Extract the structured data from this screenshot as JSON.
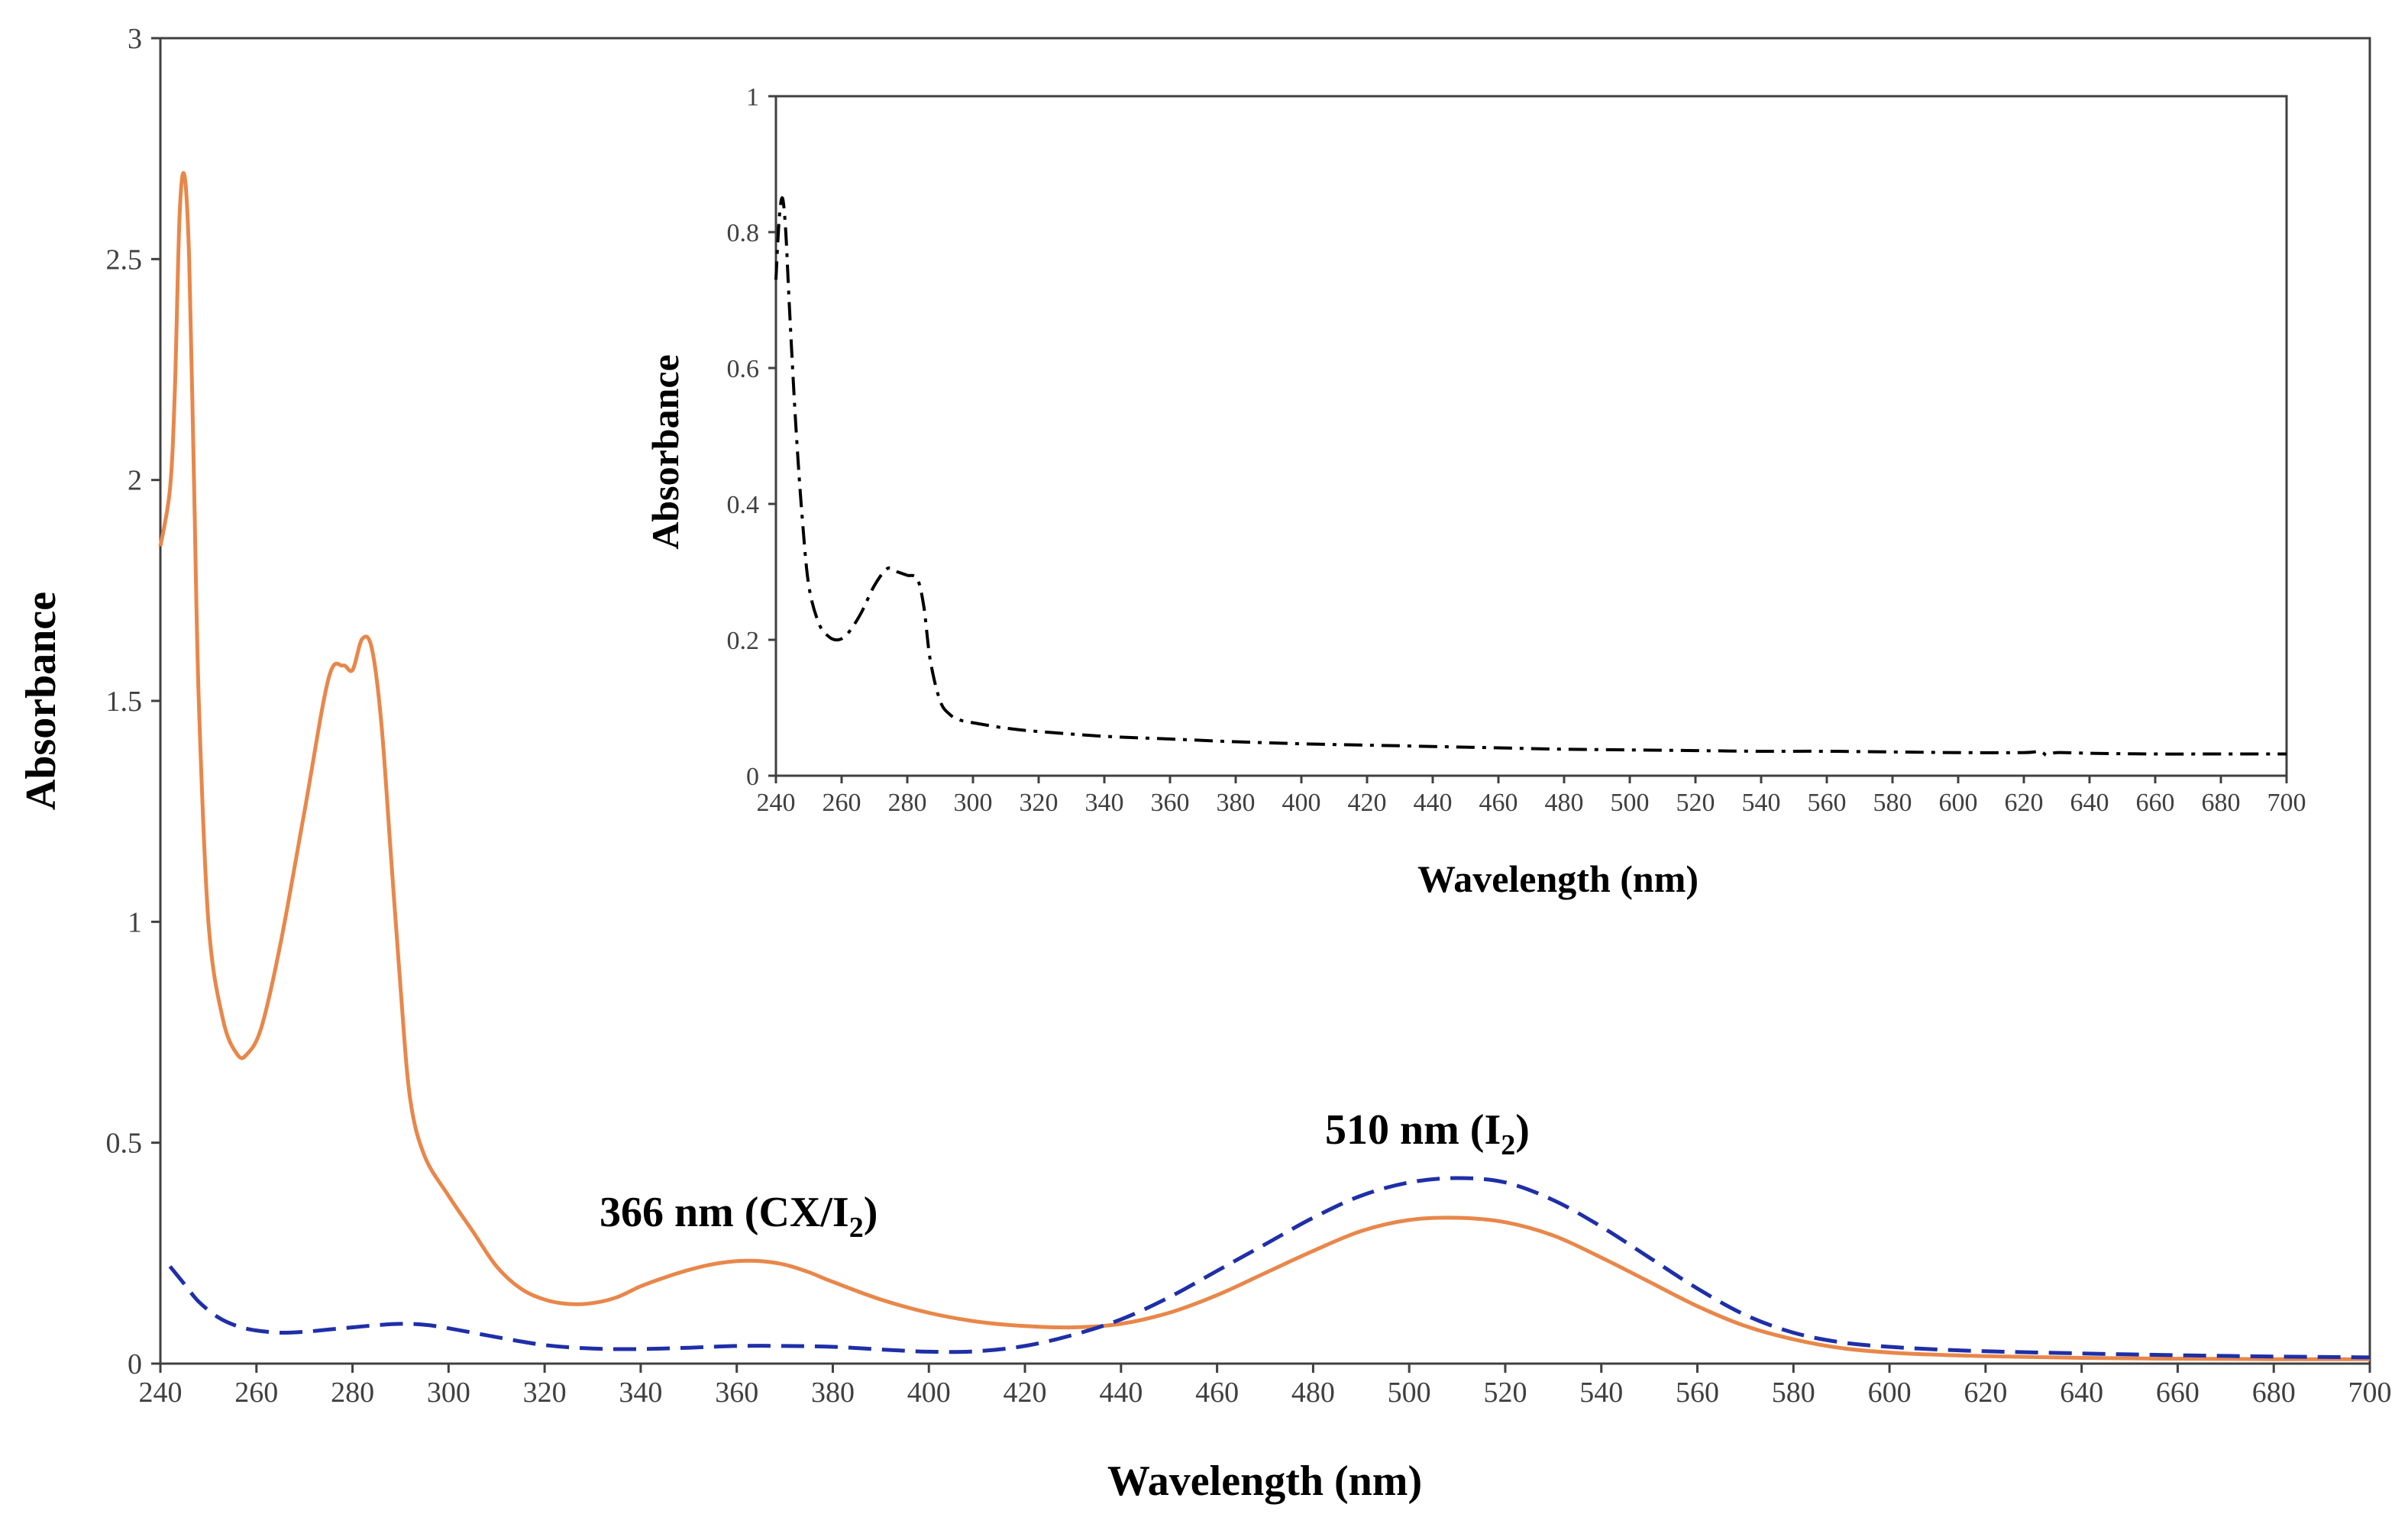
{
  "chart_data": [
    {
      "type": "line",
      "role": "main",
      "xlabel": "Wavelength (nm)",
      "ylabel": "Absorbance",
      "xlim": [
        240,
        700
      ],
      "ylim": [
        0,
        3
      ],
      "x_ticks": [
        240,
        260,
        280,
        300,
        320,
        340,
        360,
        380,
        400,
        420,
        440,
        460,
        480,
        500,
        520,
        540,
        560,
        580,
        600,
        620,
        640,
        660,
        680,
        700
      ],
      "y_ticks": [
        0,
        0.5,
        1,
        1.5,
        2,
        2.5,
        3
      ],
      "y_tick_labels": [
        "0",
        "0.5",
        "1",
        "1.5",
        "2",
        "2.5",
        "3"
      ],
      "grid": false,
      "series": [
        {
          "name": "CX/I2",
          "color": "#E8874A",
          "style": "solid",
          "x": [
            240,
            242,
            243,
            244,
            245,
            246,
            247,
            248,
            250,
            253,
            256,
            258,
            261,
            265,
            270,
            275,
            278,
            280,
            282,
            284,
            286,
            288,
            290,
            292,
            295,
            300,
            305,
            310,
            315,
            320,
            325,
            330,
            335,
            340,
            345,
            350,
            355,
            360,
            365,
            370,
            375,
            380,
            390,
            400,
            410,
            420,
            430,
            440,
            450,
            460,
            470,
            480,
            490,
            500,
            510,
            520,
            530,
            540,
            550,
            560,
            570,
            580,
            590,
            600,
            610,
            620,
            640,
            660,
            680,
            700
          ],
          "values": [
            1.85,
            1.98,
            2.2,
            2.6,
            2.69,
            2.5,
            2.0,
            1.5,
            1.0,
            0.78,
            0.7,
            0.7,
            0.76,
            0.95,
            1.25,
            1.55,
            1.58,
            1.57,
            1.64,
            1.62,
            1.45,
            1.15,
            0.85,
            0.6,
            0.47,
            0.38,
            0.3,
            0.22,
            0.17,
            0.145,
            0.135,
            0.137,
            0.15,
            0.175,
            0.195,
            0.212,
            0.225,
            0.232,
            0.232,
            0.224,
            0.207,
            0.185,
            0.145,
            0.115,
            0.095,
            0.085,
            0.082,
            0.09,
            0.115,
            0.155,
            0.205,
            0.255,
            0.3,
            0.325,
            0.33,
            0.32,
            0.29,
            0.24,
            0.185,
            0.13,
            0.085,
            0.055,
            0.035,
            0.025,
            0.02,
            0.017,
            0.013,
            0.011,
            0.01,
            0.01
          ]
        },
        {
          "name": "I2",
          "color": "#1F2FA8",
          "style": "dashed",
          "x": [
            242,
            245,
            248,
            252,
            256,
            260,
            265,
            270,
            275,
            280,
            285,
            290,
            295,
            300,
            310,
            320,
            330,
            340,
            350,
            360,
            370,
            380,
            390,
            400,
            410,
            420,
            430,
            440,
            450,
            460,
            470,
            480,
            490,
            500,
            510,
            520,
            530,
            540,
            550,
            560,
            570,
            580,
            590,
            600,
            610,
            620,
            640,
            660,
            680,
            700
          ],
          "values": [
            0.22,
            0.18,
            0.14,
            0.105,
            0.085,
            0.075,
            0.07,
            0.072,
            0.077,
            0.082,
            0.087,
            0.09,
            0.088,
            0.08,
            0.06,
            0.042,
            0.034,
            0.033,
            0.036,
            0.04,
            0.04,
            0.038,
            0.032,
            0.027,
            0.028,
            0.04,
            0.065,
            0.1,
            0.15,
            0.21,
            0.27,
            0.33,
            0.38,
            0.41,
            0.42,
            0.41,
            0.37,
            0.31,
            0.24,
            0.17,
            0.11,
            0.07,
            0.048,
            0.038,
            0.032,
            0.028,
            0.023,
            0.019,
            0.016,
            0.014
          ]
        }
      ],
      "annotations": [
        {
          "text": "366 nm (CX/I",
          "subscript": "2",
          "suffix": ")"
        },
        {
          "text": "510 nm (I",
          "subscript": "2",
          "suffix": ")"
        }
      ]
    },
    {
      "type": "line",
      "role": "inset",
      "xlabel": "Wavelength (nm)",
      "ylabel": "Absorbance",
      "xlim": [
        240,
        700
      ],
      "ylim": [
        0,
        1
      ],
      "x_ticks": [
        240,
        260,
        280,
        300,
        320,
        340,
        360,
        380,
        400,
        420,
        440,
        460,
        480,
        500,
        520,
        540,
        560,
        580,
        600,
        620,
        640,
        660,
        680,
        700
      ],
      "y_ticks": [
        0,
        0.2,
        0.4,
        0.6,
        0.8,
        1
      ],
      "y_tick_labels": [
        "0",
        "0.2",
        "0.4",
        "0.6",
        "0.8",
        "1"
      ],
      "grid": false,
      "series": [
        {
          "name": "CX",
          "color": "#000000",
          "style": "dash-dot",
          "x": [
            240,
            241,
            242,
            243,
            244,
            246,
            248,
            250,
            253,
            256,
            259,
            262,
            266,
            270,
            274,
            277,
            280,
            283,
            285,
            287,
            290,
            293,
            296,
            300,
            310,
            320,
            340,
            360,
            380,
            400,
            420,
            440,
            460,
            480,
            500,
            520,
            540,
            560,
            580,
            600,
            620,
            625,
            627,
            630,
            640,
            660,
            680,
            700
          ],
          "values": [
            0.73,
            0.82,
            0.85,
            0.8,
            0.7,
            0.52,
            0.38,
            0.28,
            0.225,
            0.205,
            0.2,
            0.21,
            0.24,
            0.28,
            0.305,
            0.3,
            0.295,
            0.29,
            0.25,
            0.17,
            0.11,
            0.09,
            0.082,
            0.078,
            0.07,
            0.065,
            0.058,
            0.054,
            0.05,
            0.047,
            0.045,
            0.043,
            0.041,
            0.039,
            0.038,
            0.037,
            0.036,
            0.036,
            0.035,
            0.034,
            0.034,
            0.036,
            0.03,
            0.034,
            0.033,
            0.032,
            0.032,
            0.032
          ]
        }
      ]
    }
  ]
}
